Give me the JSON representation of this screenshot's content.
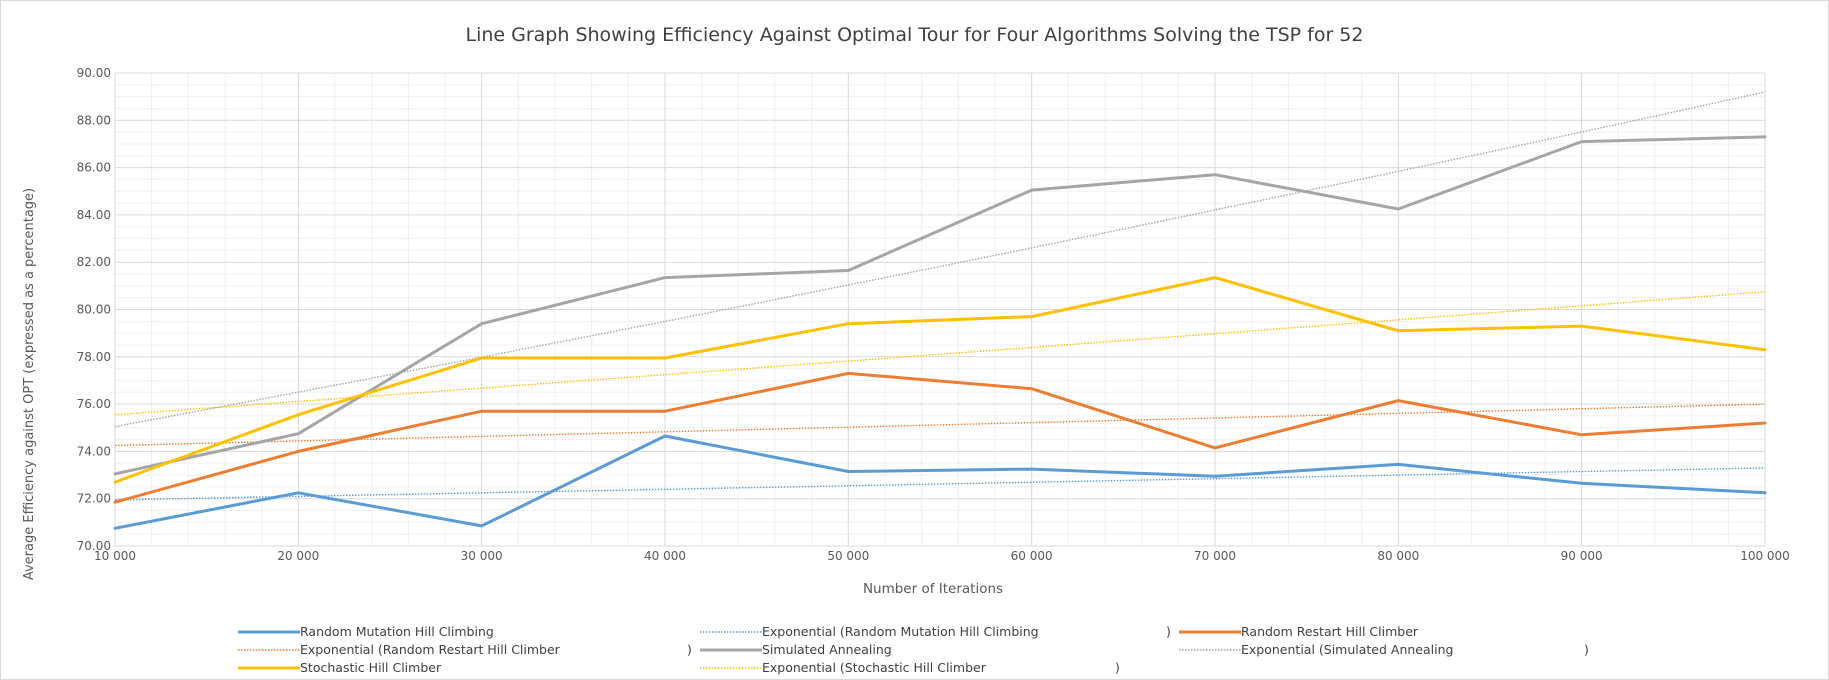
{
  "chart_data": {
    "type": "line",
    "title": "Line Graph Showing Efficiency Against Optimal Tour for Four Algorithms Solving the TSP for  52",
    "xlabel": "Number of Iterations",
    "ylabel": "Average Efficiency against OPT (expressed as a percentage)",
    "x": [
      10000,
      20000,
      30000,
      40000,
      50000,
      60000,
      70000,
      80000,
      90000,
      100000
    ],
    "x_tick_labels": [
      "10 000",
      "20 000",
      "30 000",
      "40 000",
      "50 000",
      "60 000",
      "70 000",
      "80 000",
      "90 000",
      "100 000"
    ],
    "xlim": [
      10000,
      100000
    ],
    "ylim": [
      70,
      90
    ],
    "y_tick_labels": [
      "70.00",
      "72.00",
      "74.00",
      "76.00",
      "78.00",
      "80.00",
      "82.00",
      "84.00",
      "86.00",
      "88.00",
      "90.00"
    ],
    "grid": true,
    "legend_position": "bottom",
    "series": [
      {
        "name": "Random Mutation Hill Climbing",
        "color": "#5b9bd5",
        "values": [
          70.75,
          72.25,
          70.85,
          74.65,
          73.15,
          73.25,
          72.95,
          73.45,
          72.65,
          72.25
        ]
      },
      {
        "name": "Random Restart Hill Climber",
        "color": "#ed7d31",
        "values": [
          71.85,
          74.0,
          75.7,
          75.7,
          77.3,
          76.65,
          74.15,
          76.15,
          74.7,
          75.2
        ]
      },
      {
        "name": "Simulated Annealing",
        "color": "#a5a5a5",
        "values": [
          73.05,
          74.75,
          79.4,
          81.35,
          81.65,
          85.05,
          85.7,
          84.25,
          87.1,
          87.3
        ]
      },
      {
        "name": "Stochastic Hill Climber",
        "color": "#ffc000",
        "values": [
          72.7,
          75.55,
          77.95,
          77.95,
          79.4,
          79.7,
          81.35,
          79.1,
          79.3,
          78.3
        ]
      }
    ],
    "trendlines": [
      {
        "name": "Exponential (Random Mutation Hill Climbing",
        "suffix": ")",
        "color": "#5b9bd5",
        "type": "exponential",
        "start": [
          10000,
          71.95
        ],
        "end": [
          100000,
          73.3
        ]
      },
      {
        "name": "Exponential (Random Restart Hill Climber",
        "suffix": ")",
        "color": "#ed7d31",
        "type": "exponential",
        "start": [
          10000,
          74.25
        ],
        "end": [
          100000,
          76.0
        ]
      },
      {
        "name": "Exponential (Simulated Annealing",
        "suffix": ")",
        "color": "#a5a5a5",
        "type": "exponential",
        "start": [
          10000,
          75.05
        ],
        "end": [
          100000,
          89.2
        ]
      },
      {
        "name": "Exponential (Stochastic Hill Climber",
        "suffix": ")",
        "color": "#ffc000",
        "type": "exponential",
        "start": [
          10000,
          75.55
        ],
        "end": [
          100000,
          80.75
        ]
      }
    ],
    "legend_order": [
      "series.0",
      "trend.0",
      "series.1",
      "trend.1",
      "series.2",
      "trend.2",
      "series.3",
      "trend.3"
    ]
  }
}
